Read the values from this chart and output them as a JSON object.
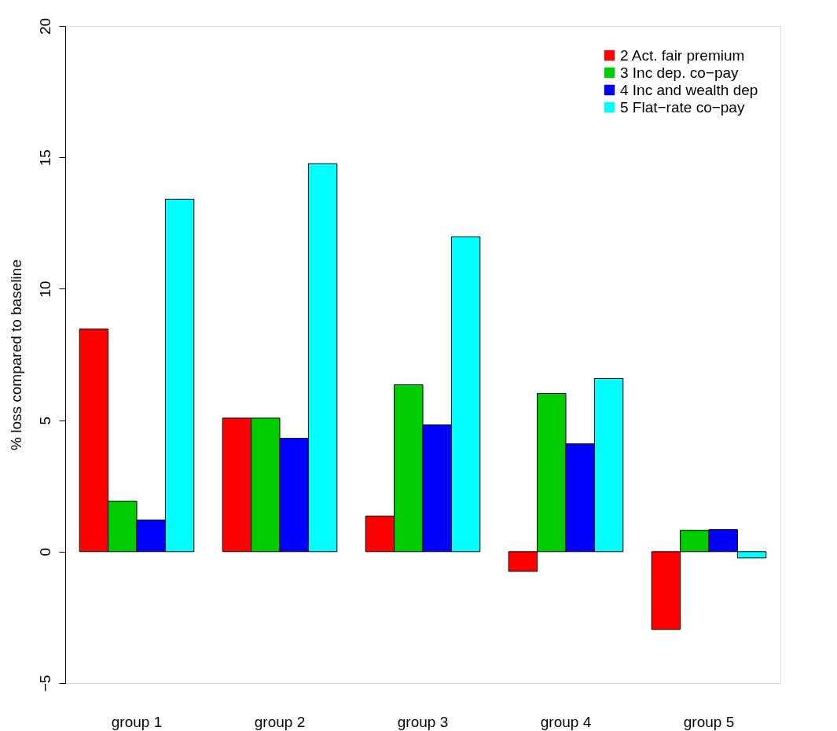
{
  "chart_data": {
    "type": "bar",
    "ylabel": "% loss compared to baseline",
    "categories": [
      "group 1",
      "group 2",
      "group 3",
      "group 4",
      "group 5"
    ],
    "series": [
      {
        "name": "2 Act. fair premium",
        "color": "#ff0000",
        "values": [
          8.47,
          5.08,
          1.35,
          -0.75,
          -2.96
        ]
      },
      {
        "name": "3 Inc dep. co−pay",
        "color": "#00cd00",
        "values": [
          1.92,
          5.08,
          6.35,
          6.02,
          0.81
        ]
      },
      {
        "name": "4 Inc and wealth dep",
        "color": "#0000ff",
        "values": [
          1.2,
          4.31,
          4.82,
          4.1,
          0.84
        ]
      },
      {
        "name": "5 Flat−rate co−pay",
        "color": "#00ffff",
        "values": [
          13.41,
          14.76,
          11.98,
          6.59,
          -0.24
        ]
      }
    ],
    "ylim": [
      -5,
      20
    ],
    "yticks": [
      -5,
      0,
      5,
      10,
      15,
      20
    ],
    "grid": false,
    "legend": "top right"
  }
}
